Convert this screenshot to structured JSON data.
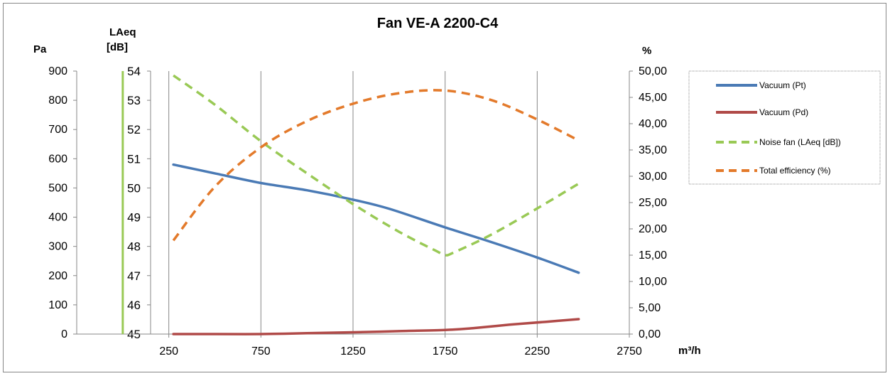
{
  "chart_data": {
    "type": "line",
    "title": "Fan VE-A 2200-C4",
    "xlabel": "m³/h",
    "xlim": [
      -250,
      2750
    ],
    "x_ticks": [
      "250",
      "750",
      "1250",
      "1750",
      "2250",
      "2750"
    ],
    "x_tick_values": [
      250,
      750,
      1250,
      1750,
      2250,
      2750
    ],
    "axes": {
      "pa": {
        "label": "Pa",
        "lim": [
          0,
          900
        ],
        "ticks": [
          "0",
          "100",
          "200",
          "300",
          "400",
          "500",
          "600",
          "700",
          "800",
          "900"
        ]
      },
      "laeq": {
        "label_lines": [
          "LAeq",
          "[dB]"
        ],
        "lim": [
          45,
          54
        ],
        "ticks": [
          "45",
          "46",
          "47",
          "48",
          "49",
          "50",
          "51",
          "52",
          "53",
          "54"
        ]
      },
      "pct": {
        "label": "%",
        "lim": [
          0,
          50
        ],
        "ticks": [
          "0,00",
          "5,00",
          "10,00",
          "15,00",
          "20,00",
          "25,00",
          "30,00",
          "35,00",
          "40,00",
          "45,00",
          "50,00"
        ]
      }
    },
    "grid": "vertical",
    "legend_position": "right",
    "series": [
      {
        "name": "Vacuum (Pt)",
        "axis": "pa",
        "color": "#4a7ab5",
        "dash": "solid",
        "x": [
          275,
          500,
          750,
          1000,
          1250,
          1450,
          1750,
          2000,
          2250,
          2475
        ],
        "y": [
          580,
          550,
          517,
          492,
          460,
          428,
          365,
          315,
          262,
          210
        ]
      },
      {
        "name": "Vacuum (Pd)",
        "axis": "pa",
        "color": "#b04a48",
        "dash": "solid",
        "x": [
          275,
          500,
          750,
          1000,
          1250,
          1500,
          1750,
          1900,
          2100,
          2300,
          2475
        ],
        "y": [
          0,
          0,
          0,
          3,
          6,
          10,
          14,
          20,
          32,
          42,
          51
        ]
      },
      {
        "name": "Noise fan (LAeq [dB])",
        "axis": "laeq",
        "color": "#99c955",
        "dash": "dashed",
        "x": [
          275,
          500,
          750,
          1000,
          1250,
          1500,
          1700,
          1750,
          1800,
          2000,
          2250,
          2475
        ],
        "y": [
          53.85,
          52.85,
          51.6,
          50.5,
          49.45,
          48.5,
          47.85,
          47.7,
          47.8,
          48.4,
          49.3,
          50.15
        ]
      },
      {
        "name": "Total efficiency (%)",
        "axis": "pct",
        "color": "#e37a2b",
        "dash": "dashed",
        "x": [
          275,
          500,
          750,
          1000,
          1250,
          1500,
          1750,
          2000,
          2250,
          2475
        ],
        "y": [
          17.8,
          28.0,
          35.5,
          40.5,
          43.8,
          45.8,
          46.3,
          44.5,
          40.8,
          36.8
        ]
      }
    ],
    "vertical_marker": {
      "x": 0,
      "color": "#99c955"
    }
  }
}
